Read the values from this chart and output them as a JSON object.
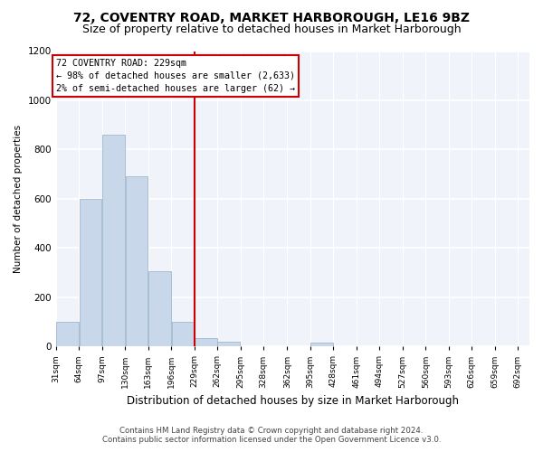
{
  "title": "72, COVENTRY ROAD, MARKET HARBOROUGH, LE16 9BZ",
  "subtitle": "Size of property relative to detached houses in Market Harborough",
  "xlabel": "Distribution of detached houses by size in Market Harborough",
  "ylabel": "Number of detached properties",
  "footer_line1": "Contains HM Land Registry data © Crown copyright and database right 2024.",
  "footer_line2": "Contains public sector information licensed under the Open Government Licence v3.0.",
  "bin_edges": [
    31,
    64,
    97,
    130,
    163,
    196,
    229,
    262,
    295,
    328,
    362,
    395,
    428,
    461,
    494,
    527,
    560,
    593,
    626,
    659,
    692
  ],
  "bar_heights": [
    100,
    600,
    860,
    690,
    305,
    100,
    35,
    20,
    0,
    0,
    0,
    15,
    0,
    0,
    0,
    0,
    0,
    0,
    0,
    0
  ],
  "bar_color": "#c8d8ea",
  "bar_edgecolor": "#a0b8cc",
  "vline_x": 229,
  "vline_color": "#cc0000",
  "annotation_text": "72 COVENTRY ROAD: 229sqm\n← 98% of detached houses are smaller (2,633)\n2% of semi-detached houses are larger (62) →",
  "annotation_box_color": "#cc0000",
  "ylim": [
    0,
    1200
  ],
  "yticks": [
    0,
    200,
    400,
    600,
    800,
    1000,
    1200
  ],
  "background_color": "#ffffff",
  "plot_background": "#f0f4fa",
  "title_fontsize": 10,
  "subtitle_fontsize": 9
}
